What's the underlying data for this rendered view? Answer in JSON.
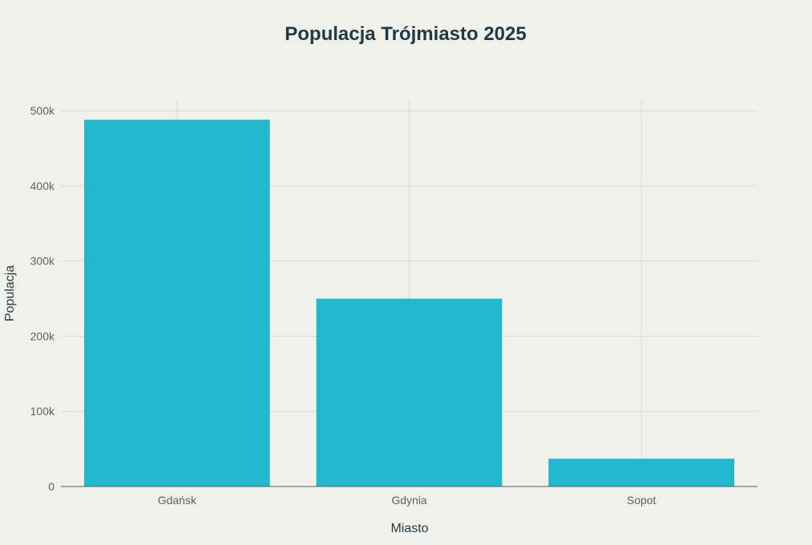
{
  "chart_data": {
    "type": "bar",
    "title": "Populacja Trójmiasto 2025",
    "xlabel": "Miasto",
    "ylabel": "Populacja",
    "categories": [
      "Gdańsk",
      "Gdynia",
      "Sopot"
    ],
    "values": [
      488000,
      250000,
      37000
    ],
    "ylim": [
      0,
      513000
    ],
    "yticks": [
      0,
      100000,
      200000,
      300000,
      400000,
      500000
    ],
    "ytick_labels": [
      "0",
      "100k",
      "200k",
      "300k",
      "400k",
      "500k"
    ],
    "grid": true,
    "bar_color": "#21b8cc",
    "legend": "none"
  }
}
